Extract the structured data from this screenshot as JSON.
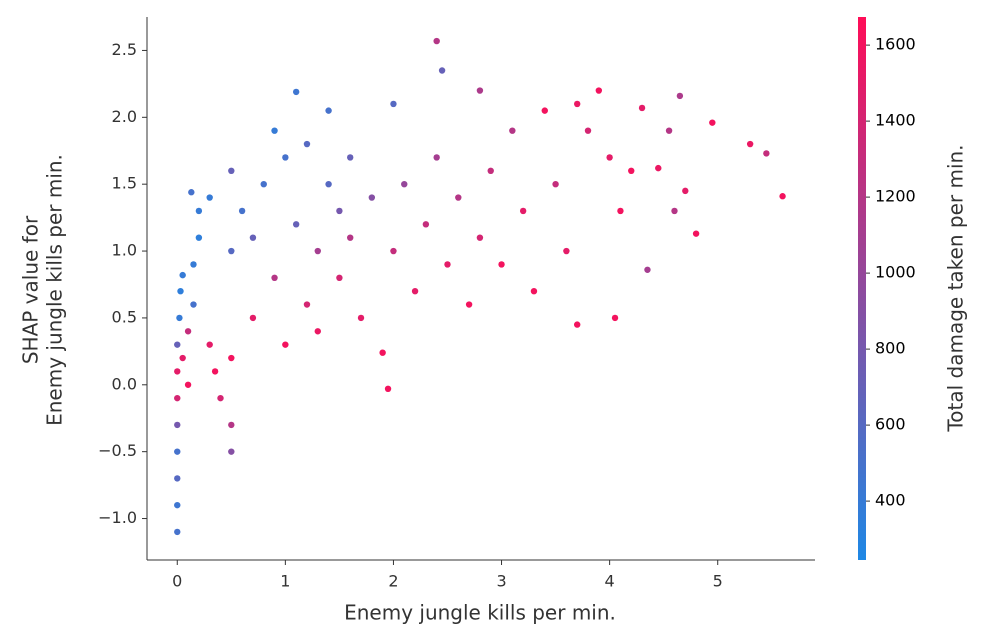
{
  "chart_data": {
    "type": "scatter",
    "xlabel": "Enemy jungle kills per min.",
    "ylabel": [
      "SHAP value for",
      "Enemy jungle kills per min."
    ],
    "xlim": [
      -0.28,
      5.9
    ],
    "xticks": [
      0,
      1,
      2,
      3,
      4,
      5
    ],
    "ylim": [
      -1.31,
      2.75
    ],
    "yticks": [
      {
        "value": -1,
        "label": "−1.0"
      },
      {
        "value": -0.5,
        "label": "−0.5"
      },
      {
        "value": 0,
        "label": "0.0"
      },
      0.5,
      {
        "value": 1,
        "label": "1.0"
      },
      1.5,
      {
        "value": 2,
        "label": "2.0"
      },
      2.5
    ],
    "x": [
      0,
      0,
      0,
      0,
      0,
      0,
      0,
      0,
      0.02,
      0.03,
      0.05,
      0.05,
      0.1,
      0.1,
      0.15,
      0.15,
      0.2,
      0.2,
      0.13,
      0.3,
      0.3,
      0.35,
      0.4,
      0.5,
      0.5,
      0.5,
      0.5,
      0.5,
      0.6,
      0.7,
      0.7,
      0.8,
      0.9,
      0.9,
      1.0,
      1.0,
      1.1,
      1.1,
      1.2,
      1.2,
      1.3,
      1.3,
      1.4,
      1.4,
      1.5,
      1.5,
      1.6,
      1.6,
      1.7,
      1.8,
      1.9,
      1.95,
      2.0,
      2.0,
      2.1,
      2.2,
      2.3,
      2.4,
      2.45,
      2.4,
      2.5,
      2.6,
      2.7,
      2.8,
      2.8,
      2.9,
      3.0,
      3.1,
      3.2,
      3.3,
      3.4,
      3.5,
      3.6,
      3.7,
      3.7,
      3.8,
      3.9,
      4.0,
      4.05,
      4.1,
      4.2,
      4.3,
      4.35,
      4.45,
      4.55,
      4.6,
      4.65,
      4.7,
      4.8,
      4.95,
      5.3,
      5.45,
      5.6
    ],
    "values": [
      -1.1,
      -0.9,
      -0.7,
      -0.5,
      -0.3,
      -0.1,
      0.1,
      0.3,
      0.5,
      0.7,
      0.82,
      0.2,
      0.0,
      0.4,
      0.6,
      0.9,
      1.1,
      1.3,
      1.44,
      1.4,
      0.3,
      0.1,
      -0.1,
      -0.5,
      -0.3,
      0.2,
      1.0,
      1.6,
      1.3,
      0.5,
      1.1,
      1.5,
      1.9,
      0.8,
      0.3,
      1.7,
      2.19,
      1.2,
      0.6,
      1.8,
      1.0,
      0.4,
      2.05,
      1.5,
      0.8,
      1.3,
      1.1,
      1.7,
      0.5,
      1.4,
      0.24,
      -0.03,
      2.1,
      1.0,
      1.5,
      0.7,
      1.2,
      2.57,
      2.35,
      1.7,
      0.9,
      1.4,
      0.6,
      2.2,
      1.1,
      1.6,
      0.9,
      1.9,
      1.3,
      0.7,
      2.05,
      1.5,
      1.0,
      2.1,
      0.45,
      1.9,
      2.2,
      1.7,
      0.5,
      1.3,
      1.6,
      2.07,
      0.86,
      1.62,
      1.9,
      1.3,
      2.16,
      1.45,
      1.13,
      1.96,
      1.8,
      1.73,
      1.41
    ],
    "color_values": [
      500,
      450,
      600,
      500,
      800,
      1400,
      1500,
      700,
      400,
      350,
      400,
      1500,
      1600,
      1300,
      500,
      400,
      350,
      400,
      500,
      400,
      1500,
      1600,
      1400,
      900,
      1200,
      1600,
      600,
      700,
      500,
      1500,
      700,
      500,
      400,
      1200,
      1600,
      500,
      450,
      700,
      1400,
      600,
      1100,
      1550,
      500,
      600,
      1400,
      800,
      1200,
      700,
      1500,
      900,
      1600,
      1600,
      600,
      1300,
      1000,
      1500,
      1300,
      1200,
      700,
      1100,
      1500,
      1200,
      1600,
      1150,
      1400,
      1300,
      1600,
      1200,
      1500,
      1600,
      1600,
      1300,
      1500,
      1550,
      1600,
      1400,
      1600,
      1500,
      1600,
      1600,
      1600,
      1500,
      1100,
      1550,
      1200,
      1200,
      1150,
      1500,
      1600,
      1600,
      1550,
      1300,
      1600
    ],
    "colormap": [
      "#1e88e5",
      "#ff0d57"
    ],
    "colorbar_label": "Total damage taken per min.",
    "clim": [
      245,
      1674
    ],
    "cticks": [
      400,
      600,
      800,
      1000,
      1200,
      1400,
      1600
    ]
  }
}
